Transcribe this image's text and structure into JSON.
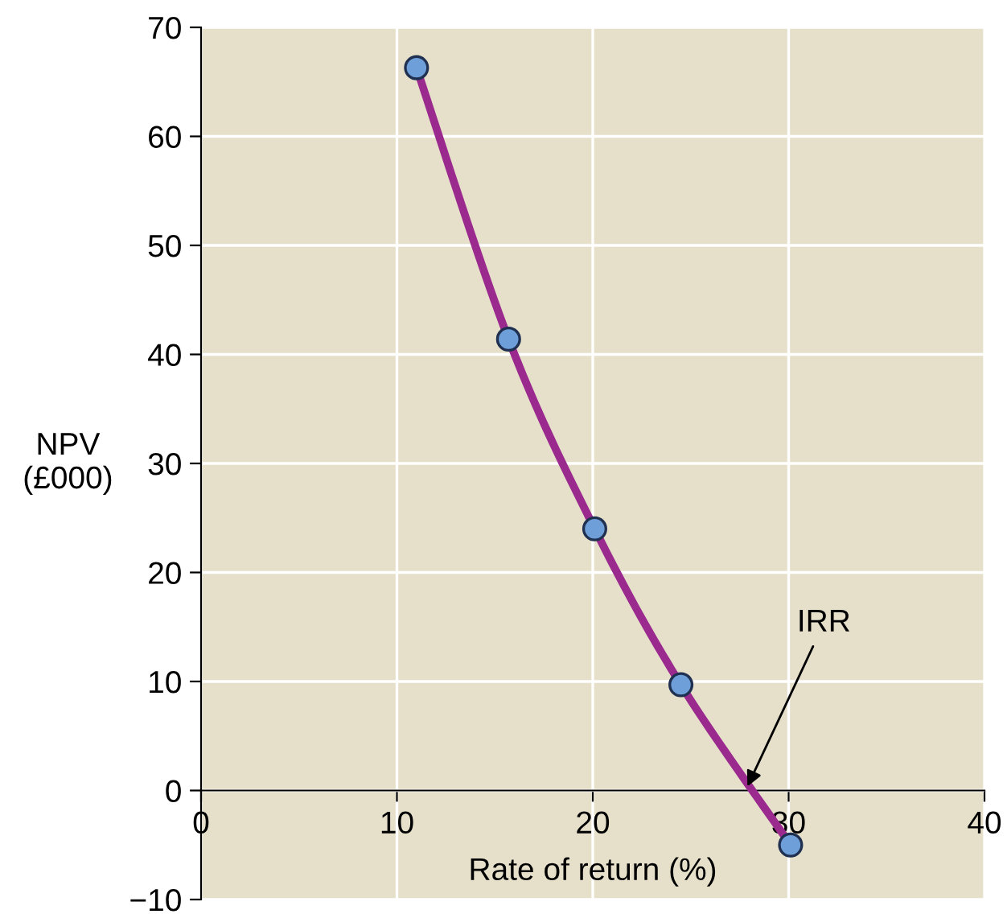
{
  "chart_data": {
    "type": "line",
    "xlabel": "Rate of return (%)",
    "ylabel": "NPV\n(£000)",
    "x": [
      11.0,
      15.7,
      20.1,
      24.5,
      30.1
    ],
    "series": [
      {
        "color": "#9b2a8f",
        "values": [
          66.3,
          41.4,
          24.0,
          9.7,
          -5.0
        ]
      }
    ],
    "xlim": [
      0,
      40
    ],
    "xticks": [
      0,
      10,
      20,
      30,
      40
    ],
    "ylim": [
      -10,
      70
    ],
    "yticks": [
      -10,
      0,
      10,
      20,
      30,
      40,
      50,
      60,
      70
    ],
    "grid": true,
    "marker": "circle",
    "line_style": "solid",
    "annotations": [
      {
        "text": "IRR",
        "x": 27.8,
        "y": 0
      }
    ]
  }
}
